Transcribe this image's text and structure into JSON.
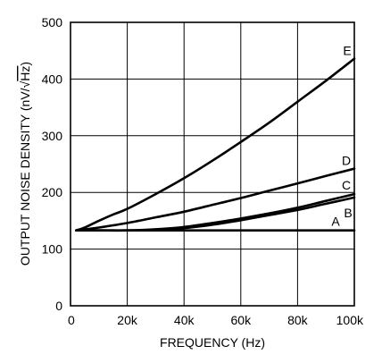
{
  "chart_data": {
    "type": "line",
    "title": "",
    "xlabel": "FREQUENCY (Hz)",
    "ylabel": "OUTPUT NOISE DENSITY (nV/√Hz)",
    "ylabel_parts": {
      "prefix": "OUTPUT NOISE DENSITY (nV/",
      "radical": "√",
      "radicand": "Hz",
      "suffix": ")"
    },
    "xlim": [
      0,
      100000
    ],
    "ylim": [
      0,
      500
    ],
    "grid": true,
    "x_ticks": [
      {
        "value": 0,
        "label": "0"
      },
      {
        "value": 20000,
        "label": "20k"
      },
      {
        "value": 40000,
        "label": "40k"
      },
      {
        "value": 60000,
        "label": "60k"
      },
      {
        "value": 80000,
        "label": "80k"
      },
      {
        "value": 100000,
        "label": "100k"
      }
    ],
    "y_ticks": [
      {
        "value": 0,
        "label": "0"
      },
      {
        "value": 100,
        "label": "100"
      },
      {
        "value": 200,
        "label": "200"
      },
      {
        "value": 300,
        "label": "300"
      },
      {
        "value": 400,
        "label": "400"
      },
      {
        "value": 500,
        "label": "500"
      }
    ],
    "series": [
      {
        "name": "A",
        "x": [
          2000,
          20000,
          40000,
          60000,
          80000,
          100000
        ],
        "y": [
          133,
          133,
          133,
          133,
          133,
          133
        ]
      },
      {
        "name": "B",
        "x": [
          2000,
          10000,
          20000,
          30000,
          40000,
          50000,
          60000,
          70000,
          80000,
          90000,
          100000
        ],
        "y": [
          133,
          133,
          133,
          134,
          137,
          143,
          151,
          160,
          169,
          180,
          191
        ]
      },
      {
        "name": "C",
        "x": [
          2000,
          10000,
          20000,
          30000,
          40000,
          50000,
          60000,
          70000,
          80000,
          90000,
          100000
        ],
        "y": [
          133,
          133,
          133,
          135,
          139,
          146,
          154,
          163,
          173,
          185,
          197
        ]
      },
      {
        "name": "D",
        "x": [
          2000,
          10000,
          20000,
          30000,
          40000,
          50000,
          60000,
          70000,
          80000,
          90000,
          100000
        ],
        "y": [
          133,
          138,
          146,
          156,
          166,
          178,
          190,
          203,
          216,
          229,
          242
        ]
      },
      {
        "name": "E",
        "x": [
          2000,
          5000,
          10000,
          15000,
          20000,
          30000,
          40000,
          50000,
          60000,
          70000,
          80000,
          90000,
          100000
        ],
        "y": [
          133,
          138,
          150,
          161,
          171,
          197,
          225,
          256,
          289,
          323,
          360,
          397,
          436
        ]
      }
    ]
  }
}
